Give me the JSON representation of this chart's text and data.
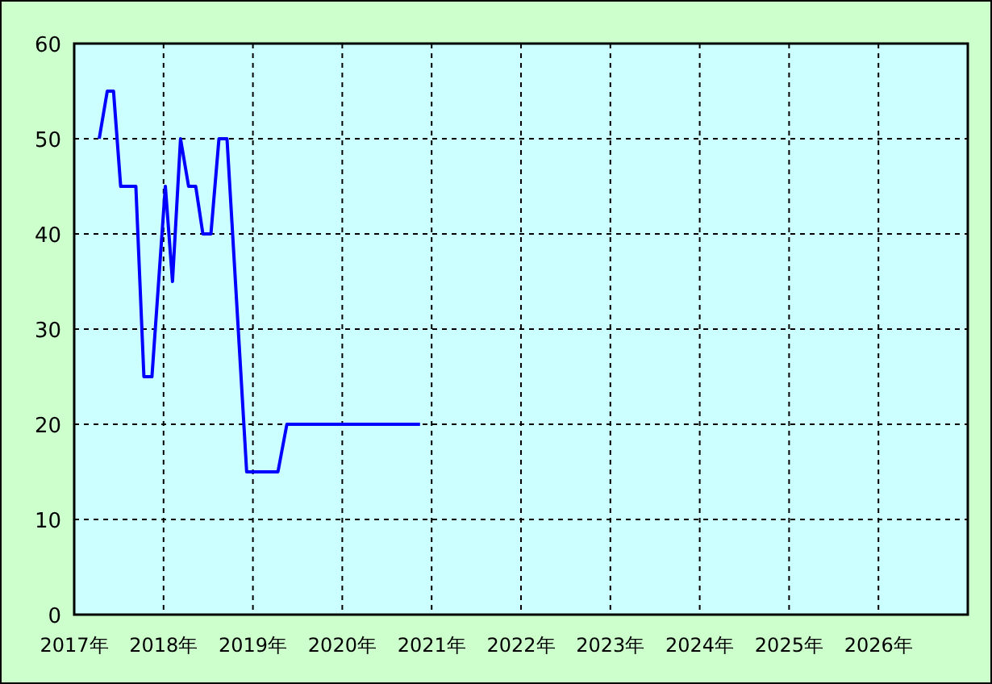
{
  "chart_data": {
    "type": "line",
    "x": [
      2017.28,
      2017.37,
      2017.44,
      2017.52,
      2017.69,
      2017.78,
      2017.87,
      2018.02,
      2018.1,
      2018.19,
      2018.28,
      2018.36,
      2018.44,
      2018.53,
      2018.62,
      2018.71,
      2018.93,
      2019.28,
      2019.38,
      2020.87
    ],
    "series": [
      {
        "color": "#0000ff",
        "values": [
          50,
          55,
          55,
          45,
          45,
          25,
          25,
          45,
          35,
          50,
          45,
          45,
          40,
          40,
          50,
          50,
          15,
          15,
          20,
          20
        ]
      }
    ],
    "xlim": [
      2017,
      2027
    ],
    "xticks": [
      {
        "value": 2017,
        "label": "2017年"
      },
      {
        "value": 2018,
        "label": "2018年"
      },
      {
        "value": 2019,
        "label": "2019年"
      },
      {
        "value": 2020,
        "label": "2020年"
      },
      {
        "value": 2021,
        "label": "2021年"
      },
      {
        "value": 2022,
        "label": "2022年"
      },
      {
        "value": 2023,
        "label": "2023年"
      },
      {
        "value": 2024,
        "label": "2024年"
      },
      {
        "value": 2025,
        "label": "2025年"
      },
      {
        "value": 2026,
        "label": "2026年"
      }
    ],
    "ylim": [
      0,
      60
    ],
    "yticks": [
      0,
      10,
      20,
      30,
      40,
      50,
      60
    ],
    "grid": true
  }
}
